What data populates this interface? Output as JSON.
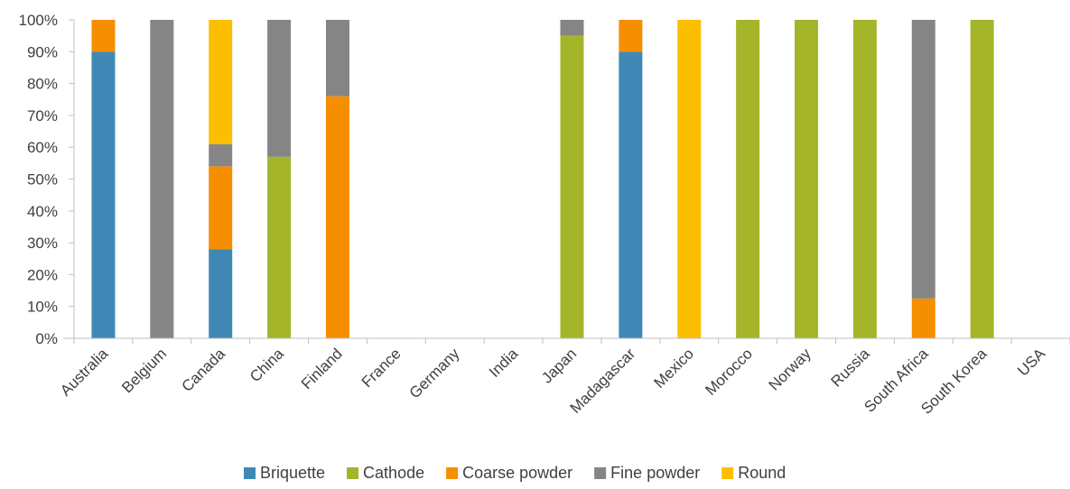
{
  "chart_data": {
    "type": "bar",
    "stacked": true,
    "percent_stacked": true,
    "title": "",
    "xlabel": "",
    "ylabel": "",
    "ylim": [
      0,
      100
    ],
    "yticks": [
      "0%",
      "10%",
      "20%",
      "30%",
      "40%",
      "50%",
      "60%",
      "70%",
      "80%",
      "90%",
      "100%"
    ],
    "grid": false,
    "legend_position": "bottom",
    "categories": [
      "Australia",
      "Belgium",
      "Canada",
      "China",
      "Finland",
      "France",
      "Germany",
      "India",
      "Japan",
      "Madagascar",
      "Mexico",
      "Morocco",
      "Norway",
      "Russia",
      "South Africa",
      "South Korea",
      "USA"
    ],
    "series": [
      {
        "name": "Briquette",
        "color": "#3f88b5",
        "values": [
          90,
          0,
          28,
          0,
          0,
          0,
          0,
          0,
          0,
          90,
          0,
          0,
          0,
          0,
          0,
          0,
          0
        ]
      },
      {
        "name": "Cathode",
        "color": "#a5b52a",
        "values": [
          0,
          0,
          0,
          57,
          0,
          0,
          0,
          0,
          95,
          0,
          0,
          100,
          100,
          100,
          0,
          100,
          0
        ]
      },
      {
        "name": "Coarse powder",
        "color": "#f58f00",
        "values": [
          10,
          0,
          26,
          0,
          76,
          0,
          0,
          0,
          0,
          10,
          0,
          0,
          0,
          0,
          12.5,
          0,
          0
        ]
      },
      {
        "name": "Fine powder",
        "color": "#858585",
        "values": [
          0,
          100,
          7,
          43,
          24,
          0,
          0,
          0,
          5,
          0,
          0,
          0,
          0,
          0,
          87.5,
          0,
          0
        ]
      },
      {
        "name": "Round",
        "color": "#fcbf00",
        "values": [
          0,
          0,
          39,
          0,
          0,
          0,
          0,
          0,
          0,
          0,
          100,
          0,
          0,
          0,
          0,
          0,
          0
        ]
      }
    ]
  }
}
